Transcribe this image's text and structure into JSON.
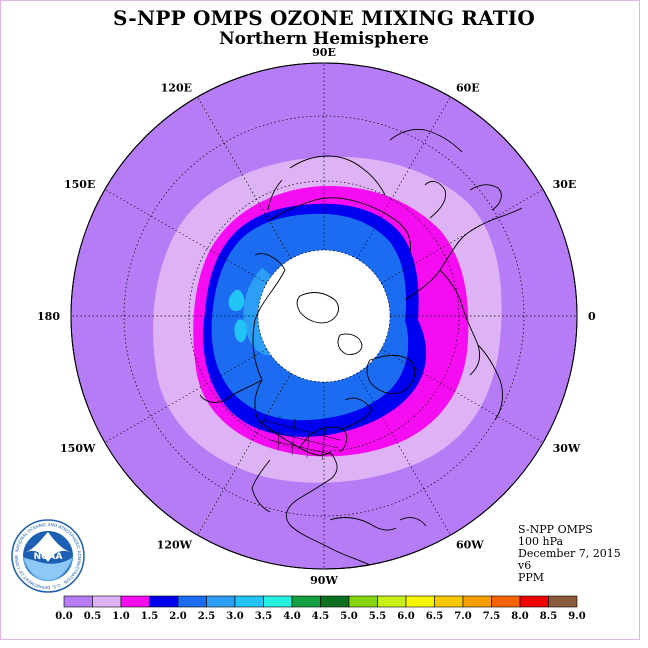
{
  "title": "S-NPP OMPS OZONE MIXING RATIO",
  "subtitle": "Northern Hemisphere",
  "longitude_labels": [
    "90E",
    "60E",
    "30E",
    "0",
    "30W",
    "60W",
    "90W",
    "120W",
    "150W",
    "180",
    "150E",
    "120E"
  ],
  "info": {
    "instrument": "S-NPP OMPS",
    "level": "100 hPa",
    "date": "December 7, 2015",
    "version": "v6",
    "units": "PPM"
  },
  "logo_text": "NOAA",
  "logo_ring_text": "NATIONAL OCEANIC AND ATMOSPHERIC ADMINISTRATION · U.S. DEPARTMENT OF COMMERCE",
  "colors": {
    "bin_0_0_0_5": "#b57cf5",
    "bin_0_5_1_0": "#deb3f5",
    "bin_1_0_1_5": "#f50cf0",
    "bin_1_5_2_0": "#0000f0",
    "bin_2_0_2_5": "#1b6cf0",
    "bin_2_5_3_0": "#2c9ef5",
    "bin_3_0_3_5": "#22c3f5",
    "bin_3_5_4_0": "#28f0e0",
    "bin_4_0_4_5": "#12a040",
    "bin_4_5_5_0": "#0a7020",
    "bin_5_0_5_5": "#84d410",
    "bin_5_5_6_0": "#c8f018",
    "bin_6_0_6_5": "#f5f500",
    "bin_6_5_7_0": "#f5c800",
    "bin_7_0_7_5": "#f5a000",
    "bin_7_5_8_0": "#f56400",
    "bin_8_0_8_5": "#f00000",
    "bin_8_5_9_0": "#8a5a3a",
    "polar_night": "#ffffff",
    "border": "#e6b3e6"
  },
  "colorbar": {
    "labels": [
      "0.0",
      "0.5",
      "1.0",
      "1.5",
      "2.0",
      "2.5",
      "3.0",
      "3.5",
      "4.0",
      "4.5",
      "5.0",
      "5.5",
      "6.0",
      "6.5",
      "7.0",
      "7.5",
      "8.0",
      "8.5",
      "9.0"
    ]
  }
}
